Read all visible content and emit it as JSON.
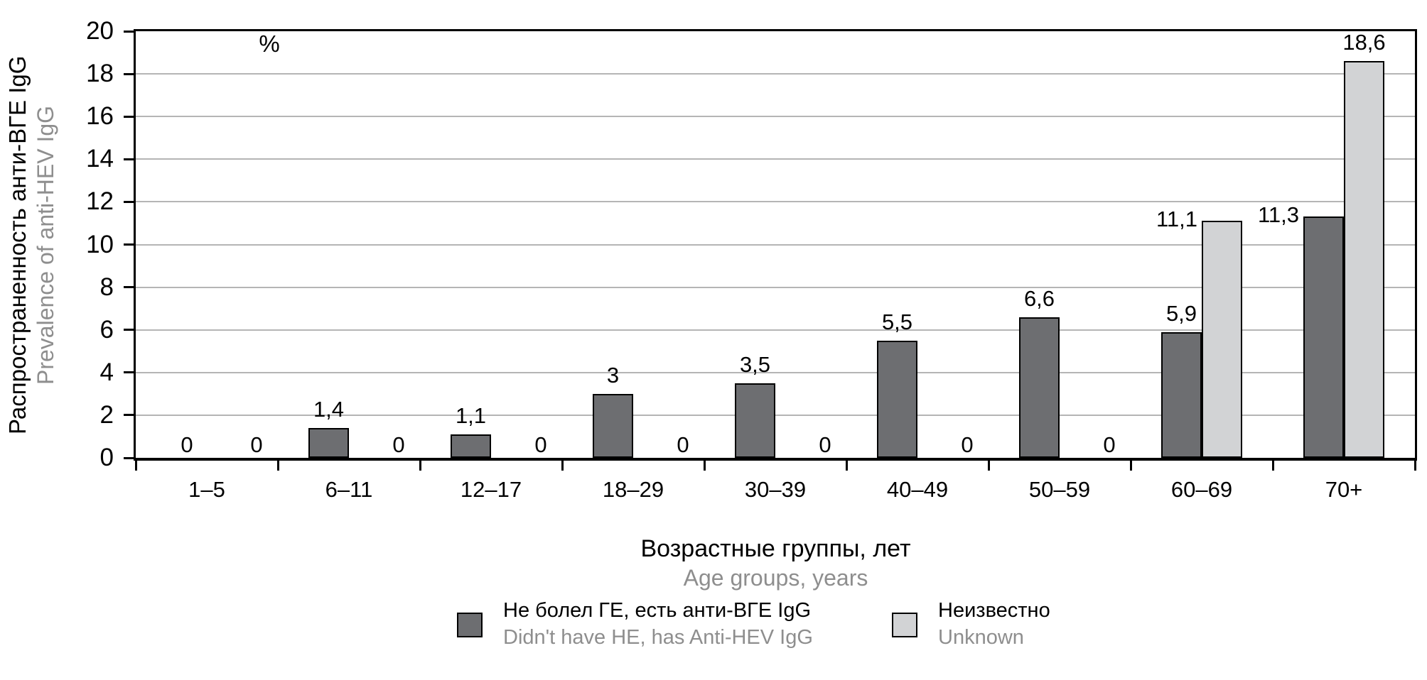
{
  "y_axis": {
    "unit": "%",
    "title_ru": "Распространенность анти-ВГЕ IgG",
    "title_en": "Prevalence of anti-HEV IgG",
    "ticks": [
      0,
      2,
      4,
      6,
      8,
      10,
      12,
      14,
      16,
      18,
      20
    ],
    "tick_labels": [
      "0",
      "2",
      "4",
      "6",
      "8",
      "10",
      "12",
      "14",
      "16",
      "18",
      "20"
    ]
  },
  "x_axis": {
    "title_ru": "Возрастные группы, лет",
    "title_en": "Age groups, years"
  },
  "legend": [
    {
      "label_ru": "Не болел ГЕ, есть анти-ВГЕ IgG",
      "label_en": "Didn't have HE, has Anti-HEV IgG",
      "color": "#6d6e71"
    },
    {
      "label_ru": "Неизвестно",
      "label_en": "Unknown",
      "color": "#d2d3d5"
    }
  ],
  "colors": {
    "dark_series": "#6d6e71",
    "light_series": "#d2d3d5",
    "gridline": "#b5b5b5",
    "axis": "#000000",
    "secondary_text": "#8e8e8e"
  },
  "chart_data": {
    "type": "bar",
    "title": "",
    "xlabel": "Возрастные группы, лет / Age groups, years",
    "ylabel": "Распространенность анти-ВГЕ IgG, % / Prevalence of anti-HEV IgG, %",
    "ylim": [
      0,
      20
    ],
    "y_step": 2,
    "grid": true,
    "legend_position": "bottom",
    "categories": [
      "1–5",
      "6–11",
      "12–17",
      "18–29",
      "30–39",
      "40–49",
      "50–59",
      "60–69",
      "70+"
    ],
    "series": [
      {
        "name": "Не болел ГЕ, есть анти-ВГЕ IgG / Didn't have HE, has Anti-HEV IgG",
        "color": "#6d6e71",
        "values": [
          0,
          1.4,
          1.1,
          3,
          3.5,
          5.5,
          6.6,
          5.9,
          11.3
        ],
        "labels": [
          "0",
          "1,4",
          "1,1",
          "3",
          "3,5",
          "5,5",
          "6,6",
          "5,9",
          "11,3"
        ],
        "label_pos": [
          "zero",
          "above",
          "above",
          "above",
          "above",
          "above",
          "above",
          "above",
          "left"
        ]
      },
      {
        "name": "Неизвестно / Unknown",
        "color": "#d2d3d5",
        "values": [
          0,
          0,
          0,
          0,
          0,
          0,
          0,
          11.1,
          18.6
        ],
        "labels": [
          "0",
          "0",
          "0",
          "0",
          "0",
          "0",
          "0",
          "11,1",
          "18,6"
        ],
        "label_pos": [
          "zero",
          "zero",
          "zero",
          "zero",
          "zero",
          "zero",
          "zero",
          "left",
          "above"
        ]
      }
    ]
  }
}
